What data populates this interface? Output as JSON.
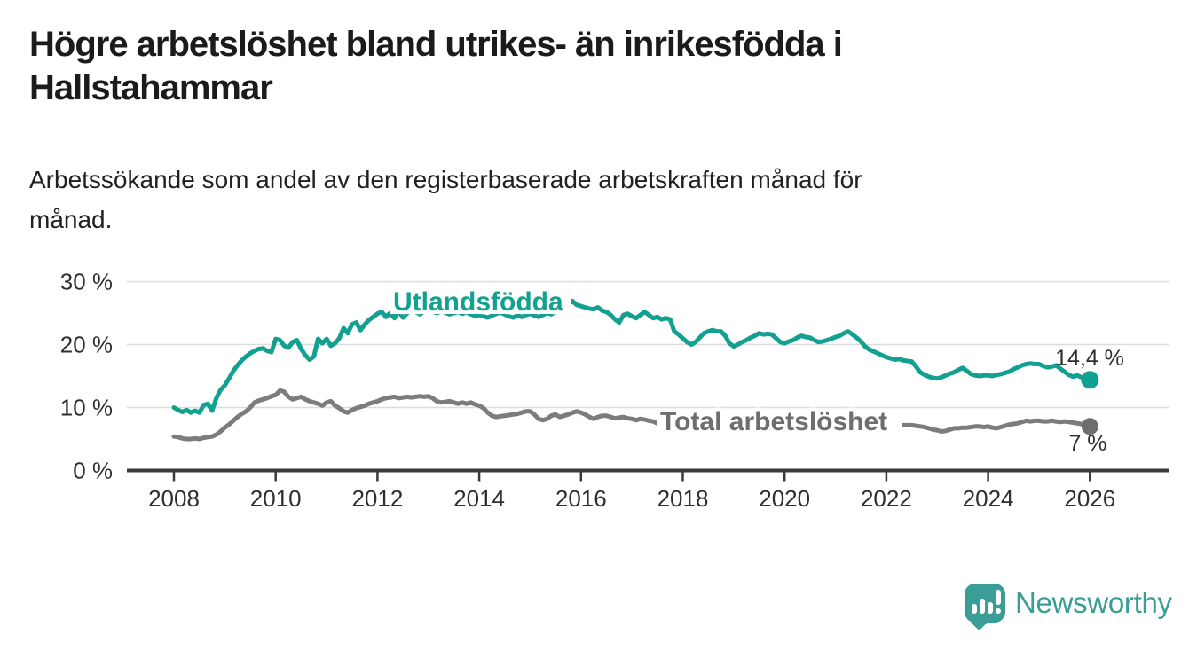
{
  "page": {
    "title": "Högre arbetslöshet bland utrikes- än inrikesfödda i\nHallstahammar",
    "subtitle": "Arbetssökande som andel av den registerbaserade arbetskraften månad för\nmånad."
  },
  "branding": {
    "logo_text": "Newsworthy",
    "logo_icon": "speech-bubble-bar-chart-icon",
    "brand_color": "#3a9e96"
  },
  "chart_data": {
    "type": "line",
    "x_start_year": 2008,
    "points_per_year": 12,
    "x_ticks": [
      2008,
      2010,
      2012,
      2014,
      2016,
      2018,
      2020,
      2022,
      2024,
      2026
    ],
    "y_ticks": [
      {
        "label": "0 %",
        "value": 0
      },
      {
        "label": "10 %",
        "value": 10
      },
      {
        "label": "20 %",
        "value": 20
      },
      {
        "label": "30 %",
        "value": 30
      }
    ],
    "ylim": [
      0,
      32
    ],
    "unit": "%",
    "grid": "horizontal",
    "colors": {
      "grid": "#dcdcdc",
      "axis": "#3a3a3a",
      "tick_text": "#2f2f2f"
    },
    "series": [
      {
        "name": "Utlandsfödda",
        "color": "#12a190",
        "label_color": "#12a190",
        "end_label": "14,4 %",
        "end_value": 14.4,
        "values": [
          10.0,
          9.6,
          9.3,
          9.6,
          9.2,
          9.5,
          9.2,
          10.4,
          10.6,
          9.5,
          11.5,
          12.8,
          13.5,
          14.6,
          15.8,
          16.7,
          17.5,
          18.1,
          18.6,
          19.0,
          19.3,
          19.4,
          19.0,
          18.8,
          20.9,
          20.7,
          19.8,
          19.5,
          20.4,
          20.7,
          19.3,
          18.3,
          17.6,
          18.1,
          20.9,
          20.2,
          20.9,
          19.8,
          20.2,
          21.0,
          22.6,
          21.8,
          23.2,
          23.5,
          22.3,
          23.2,
          23.9,
          24.4,
          24.9,
          25.2,
          24.4,
          25.0,
          24.2,
          25.3,
          24.3,
          25.0,
          25.5,
          25.2,
          24.8,
          25.3,
          25.5,
          25.2,
          25.0,
          25.3,
          25.1,
          24.8,
          25.0,
          25.2,
          24.9,
          25.1,
          24.8,
          24.6,
          24.7,
          24.5,
          24.3,
          24.6,
          24.9,
          25.1,
          24.8,
          24.5,
          24.3,
          24.6,
          24.4,
          24.7,
          24.9,
          24.6,
          24.4,
          24.7,
          25.0,
          24.8,
          25.2,
          25.6,
          26.0,
          26.4,
          26.9,
          26.3,
          26.1,
          25.9,
          25.7,
          25.6,
          25.9,
          25.4,
          25.2,
          24.7,
          24.0,
          23.5,
          24.7,
          24.9,
          24.5,
          24.2,
          24.7,
          25.2,
          24.7,
          24.2,
          24.4,
          24.0,
          24.2,
          24.0,
          22.1,
          21.6,
          21.0,
          20.4,
          20.0,
          20.4,
          21.1,
          21.8,
          22.1,
          22.3,
          22.1,
          22.1,
          21.4,
          20.2,
          19.7,
          20.0,
          20.4,
          20.7,
          21.1,
          21.4,
          21.8,
          21.6,
          21.7,
          21.6,
          21.0,
          20.4,
          20.2,
          20.5,
          20.7,
          21.1,
          21.4,
          21.2,
          21.1,
          20.7,
          20.4,
          20.5,
          20.7,
          20.9,
          21.2,
          21.4,
          21.8,
          22.1,
          21.6,
          21.1,
          20.5,
          19.7,
          19.2,
          18.9,
          18.6,
          18.3,
          18.0,
          17.8,
          17.6,
          17.7,
          17.5,
          17.4,
          17.3,
          16.5,
          15.6,
          15.2,
          14.9,
          14.7,
          14.6,
          14.8,
          15.1,
          15.4,
          15.6,
          16.0,
          16.3,
          15.8,
          15.3,
          15.1,
          15.0,
          15.1,
          15.1,
          15.0,
          15.2,
          15.3,
          15.5,
          15.7,
          16.1,
          16.4,
          16.7,
          16.9,
          17.0,
          16.9,
          16.9,
          16.6,
          16.4,
          16.5,
          16.7,
          16.2,
          15.7,
          15.2,
          14.9,
          15.1,
          14.8,
          14.5,
          14.4
        ]
      },
      {
        "name": "Total arbetslöshet",
        "color": "#7c7c7c",
        "label_color": "#6e6e6e",
        "end_label": "7 %",
        "end_value": 7.0,
        "values": [
          5.4,
          5.3,
          5.1,
          5.0,
          5.0,
          5.1,
          5.0,
          5.2,
          5.3,
          5.4,
          5.7,
          6.2,
          6.8,
          7.3,
          7.9,
          8.5,
          9.0,
          9.4,
          10.0,
          10.8,
          11.1,
          11.3,
          11.5,
          11.8,
          12.0,
          12.7,
          12.5,
          11.7,
          11.3,
          11.5,
          11.7,
          11.3,
          11.0,
          10.8,
          10.6,
          10.3,
          10.8,
          11.0,
          10.3,
          9.9,
          9.4,
          9.2,
          9.6,
          9.9,
          10.1,
          10.3,
          10.6,
          10.8,
          11.0,
          11.3,
          11.5,
          11.6,
          11.7,
          11.5,
          11.6,
          11.7,
          11.6,
          11.7,
          11.8,
          11.7,
          11.8,
          11.5,
          11.0,
          10.8,
          10.9,
          11.0,
          10.8,
          10.6,
          10.8,
          10.6,
          10.8,
          10.5,
          10.3,
          9.9,
          9.2,
          8.7,
          8.5,
          8.6,
          8.7,
          8.8,
          8.9,
          9.0,
          9.2,
          9.4,
          9.4,
          8.9,
          8.2,
          8.0,
          8.2,
          8.7,
          8.9,
          8.5,
          8.7,
          8.9,
          9.2,
          9.4,
          9.2,
          8.9,
          8.5,
          8.2,
          8.5,
          8.7,
          8.7,
          8.5,
          8.3,
          8.4,
          8.5,
          8.3,
          8.2,
          8.0,
          8.2,
          8.1,
          7.9,
          7.8,
          7.5,
          7.8,
          7.7,
          7.8,
          7.9,
          7.8,
          7.8,
          7.7,
          7.6,
          7.7,
          7.8,
          7.7,
          7.6,
          7.5,
          7.6,
          7.7,
          7.6,
          7.5,
          7.5,
          7.4,
          7.5,
          7.6,
          7.5,
          7.4,
          7.5,
          7.6,
          7.5,
          7.4,
          7.5,
          7.6,
          7.7,
          7.8,
          7.9,
          8.0,
          7.9,
          7.8,
          7.9,
          7.8,
          7.7,
          7.6,
          7.5,
          7.6,
          7.6,
          7.5,
          7.4,
          7.5,
          7.4,
          7.3,
          7.4,
          7.3,
          7.2,
          7.3,
          7.2,
          7.3,
          7.3,
          7.2,
          7.3,
          7.2,
          7.2,
          7.2,
          7.2,
          7.1,
          7.0,
          6.9,
          6.7,
          6.5,
          6.4,
          6.2,
          6.3,
          6.5,
          6.7,
          6.7,
          6.8,
          6.8,
          6.9,
          7.0,
          7.0,
          6.9,
          7.0,
          6.8,
          6.7,
          6.9,
          7.1,
          7.3,
          7.4,
          7.5,
          7.7,
          7.9,
          7.8,
          7.9,
          7.9,
          7.8,
          7.8,
          7.9,
          7.8,
          7.7,
          7.8,
          7.7,
          7.6,
          7.5,
          7.4,
          7.2,
          7.0
        ]
      }
    ]
  }
}
